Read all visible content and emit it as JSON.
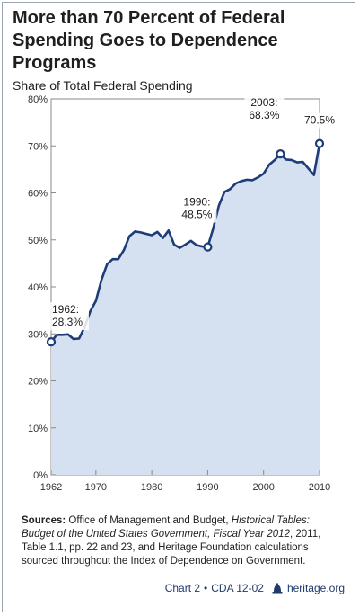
{
  "title": "More than 70 Percent of Federal Spending Goes to Dependence Programs",
  "subtitle": "Share of Total Federal Spending",
  "chart_data": {
    "type": "area",
    "title": "More than 70 Percent of Federal Spending Goes to Dependence Programs",
    "ylabel": "Share of Total Federal Spending",
    "xlabel": "",
    "xlim": [
      1962,
      2010
    ],
    "ylim": [
      0,
      80
    ],
    "x_ticks": [
      1962,
      1970,
      1980,
      1990,
      2000,
      2010
    ],
    "y_ticks": [
      0,
      10,
      20,
      30,
      40,
      50,
      60,
      70,
      80
    ],
    "y_tick_labels": [
      "0%",
      "10%",
      "20%",
      "30%",
      "40%",
      "50%",
      "60%",
      "70%",
      "80%"
    ],
    "grid": false,
    "series": [
      {
        "x": [
          1962,
          1963,
          1964,
          1965,
          1966,
          1967,
          1968,
          1969,
          1970,
          1971,
          1972,
          1973,
          1974,
          1975,
          1976,
          1977,
          1978,
          1979,
          1980,
          1981,
          1982,
          1983,
          1984,
          1985,
          1986,
          1987,
          1988,
          1989,
          1990,
          1991,
          1992,
          1993,
          1994,
          1995,
          1996,
          1997,
          1998,
          1999,
          2000,
          2001,
          2002,
          2003,
          2004,
          2005,
          2006,
          2007,
          2008,
          2009,
          2010
        ],
        "y": [
          28.3,
          29.8,
          29.8,
          29.9,
          28.9,
          29.0,
          31.5,
          34.8,
          37.0,
          41.5,
          44.8,
          45.9,
          45.9,
          47.8,
          50.8,
          51.8,
          51.6,
          51.3,
          51.0,
          51.7,
          50.4,
          52.0,
          49.0,
          48.3,
          49.0,
          49.8,
          48.9,
          48.6,
          48.5,
          52.5,
          57.3,
          60.2,
          60.8,
          62.0,
          62.5,
          62.8,
          62.7,
          63.3,
          64.1,
          66.0,
          67.0,
          68.3,
          67.1,
          67.0,
          66.5,
          66.6,
          65.2,
          63.8,
          70.5
        ],
        "color": "#1e3c78",
        "fill": "#d5e1f0"
      }
    ],
    "annotations": [
      {
        "x": 1962,
        "y": 28.3,
        "label_year": "1962:",
        "label_value": "28.3%"
      },
      {
        "x": 1990,
        "y": 48.5,
        "label_year": "1990:",
        "label_value": "48.5%"
      },
      {
        "x": 2003,
        "y": 68.3,
        "label_year": "2003:",
        "label_value": "68.3%"
      },
      {
        "x": 2010,
        "y": 70.5,
        "label_year": "",
        "label_value": "70.5%"
      }
    ]
  },
  "sources": {
    "prefix": "Sources:",
    "text_1": " Office of Management and Budget, ",
    "italic": "Historical Tables: Budget of the United States Government, Fiscal Year 2012",
    "text_2": ", 2011, Table 1.1, pp. 22 and 23, and Heritage Foundation calculations sourced throughout the Index of Dependence on Government."
  },
  "footer": {
    "chart_label": "Chart 2",
    "sep": "•",
    "doc_id": "CDA 12-02",
    "site": "heritage.org"
  }
}
